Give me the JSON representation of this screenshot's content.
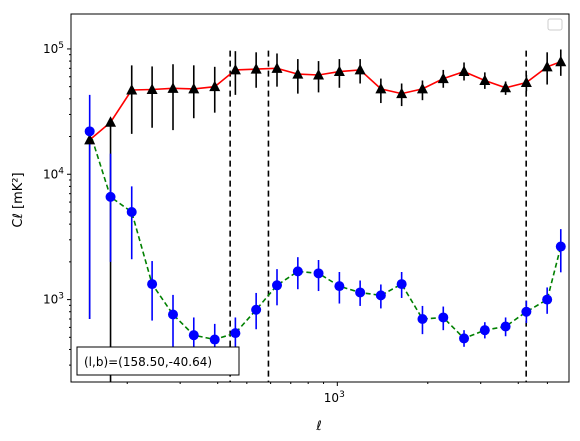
{
  "chart_data": {
    "type": "line",
    "scale": {
      "x": "log",
      "y": "log"
    },
    "xlim": [
      130,
      5900
    ],
    "ylim": [
      220,
      190000
    ],
    "xlabel": "ℓ",
    "ylabel": "C_ℓ [mK²]",
    "ylabel_text": "Cℓ  [mK²]",
    "x_tick_labels": [
      {
        "value": 1000,
        "base": "10",
        "exp": "3"
      }
    ],
    "y_tick_labels": [
      {
        "value": 1000,
        "base": "10",
        "exp": "3"
      },
      {
        "value": 10000,
        "base": "10",
        "exp": "4"
      },
      {
        "value": 100000,
        "base": "10",
        "exp": "5"
      }
    ],
    "legend": "top-right, empty",
    "annotation": "(l, b)=(158.50,-40.64)",
    "annotation_text": "(l,b)=(158.50,-40.64)",
    "vlines": [
      440,
      590,
      4250
    ],
    "series": [
      {
        "marker": "triangle",
        "color": "#ff0000",
        "marker_color": "#000000",
        "line_style": "solid",
        "errorbar_color": "#000000",
        "x": [
          150,
          176,
          207,
          242,
          284,
          333,
          391,
          458,
          537,
          630,
          739,
          866,
          1016,
          1191,
          1396,
          1637,
          1920,
          2252,
          2640,
          3096,
          3630,
          4256,
          4991,
          5540
        ],
        "y": [
          18800,
          26000,
          47000,
          47500,
          48500,
          48000,
          50000,
          68000,
          69000,
          70000,
          63000,
          62000,
          66000,
          68000,
          48000,
          44000,
          48000,
          58000,
          66000,
          56000,
          49000,
          54000,
          72000,
          79000
        ],
        "yerr_low": [
          18100,
          25900,
          26000,
          24000,
          26000,
          20000,
          19000,
          25000,
          20000,
          20000,
          19000,
          17000,
          17000,
          15000,
          11000,
          9000,
          9000,
          9000,
          10000,
          8000,
          6000,
          8000,
          20000,
          18000
        ],
        "yerr_high": [
          0,
          0,
          27000,
          25000,
          27000,
          26000,
          22000,
          28000,
          25000,
          22000,
          20000,
          18000,
          17000,
          15000,
          10000,
          9000,
          8000,
          10000,
          12000,
          9000,
          6000,
          8000,
          22000,
          20000
        ]
      },
      {
        "marker": "circle",
        "color": "#008000",
        "marker_color": "#0000ff",
        "line_style": "dashed",
        "errorbar_color": "#0000ff",
        "x": [
          150,
          176,
          207,
          242,
          284,
          333,
          391,
          458,
          537,
          630,
          739,
          866,
          1016,
          1191,
          1396,
          1637,
          1920,
          2252,
          2640,
          3096,
          3630,
          4256,
          4991,
          5540
        ],
        "y": [
          22000,
          6600,
          5000,
          1330,
          760,
          520,
          480,
          540,
          830,
          1300,
          1680,
          1620,
          1280,
          1140,
          1080,
          1330,
          700,
          720,
          490,
          570,
          610,
          800,
          1000,
          2650
        ],
        "yerr_low": [
          21300,
          4600,
          2900,
          650,
          380,
          170,
          120,
          150,
          250,
          400,
          470,
          450,
          350,
          250,
          230,
          300,
          170,
          150,
          70,
          80,
          100,
          150,
          230,
          1000
        ],
        "yerr_high": [
          21000,
          8000,
          3000,
          700,
          330,
          200,
          160,
          180,
          300,
          450,
          500,
          450,
          380,
          280,
          240,
          330,
          190,
          160,
          80,
          90,
          110,
          180,
          250,
          1000
        ]
      }
    ]
  },
  "colors": {
    "line_red": "#ff0000",
    "line_green": "#008000",
    "marker_blue": "#0000ff",
    "marker_black": "#000000",
    "vline": "#000000"
  }
}
